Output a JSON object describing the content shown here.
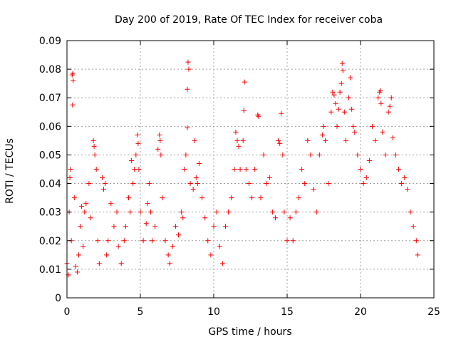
{
  "chart_data": {
    "type": "scatter",
    "title": "Day 200 of 2019, Rate Of TEC Index for receiver coba",
    "xlabel": "GPS time / hours",
    "ylabel": "ROTI / TECUs",
    "xlim": [
      0,
      25
    ],
    "ylim": [
      0,
      0.09
    ],
    "x_ticks": [
      0,
      5,
      10,
      15,
      20,
      25
    ],
    "y_ticks": [
      0,
      0.01,
      0.02,
      0.03,
      0.04,
      0.05,
      0.06,
      0.07,
      0.08,
      0.09
    ],
    "x_tick_labels": [
      "0",
      "5",
      "10",
      "15",
      "20",
      "25"
    ],
    "y_tick_labels": [
      "0",
      "0.01",
      "0.02",
      "0.03",
      "0.04",
      "0.05",
      "0.06",
      "0.07",
      "0.08",
      "0.09"
    ],
    "grid": true,
    "marker": "+",
    "series_color": "#ff0000",
    "series": [
      {
        "name": "ROTI",
        "points": [
          [
            0.0,
            0.012
          ],
          [
            0.1,
            0.008
          ],
          [
            0.15,
            0.03
          ],
          [
            0.2,
            0.042
          ],
          [
            0.25,
            0.045
          ],
          [
            0.3,
            0.02
          ],
          [
            0.35,
            0.078
          ],
          [
            0.4,
            0.0785
          ],
          [
            0.42,
            0.076
          ],
          [
            0.38,
            0.0675
          ],
          [
            0.5,
            0.035
          ],
          [
            0.6,
            0.011
          ],
          [
            0.7,
            0.009
          ],
          [
            0.8,
            0.015
          ],
          [
            0.9,
            0.025
          ],
          [
            1.0,
            0.032
          ],
          [
            1.1,
            0.018
          ],
          [
            1.2,
            0.03
          ],
          [
            1.3,
            0.033
          ],
          [
            1.5,
            0.04
          ],
          [
            1.6,
            0.028
          ],
          [
            1.8,
            0.055
          ],
          [
            1.85,
            0.053
          ],
          [
            1.9,
            0.05
          ],
          [
            2.0,
            0.045
          ],
          [
            2.1,
            0.02
          ],
          [
            2.2,
            0.012
          ],
          [
            2.4,
            0.042
          ],
          [
            2.5,
            0.038
          ],
          [
            2.6,
            0.04
          ],
          [
            2.7,
            0.015
          ],
          [
            2.8,
            0.02
          ],
          [
            3.0,
            0.033
          ],
          [
            3.2,
            0.025
          ],
          [
            3.4,
            0.03
          ],
          [
            3.5,
            0.018
          ],
          [
            3.7,
            0.012
          ],
          [
            3.9,
            0.02
          ],
          [
            4.0,
            0.025
          ],
          [
            4.2,
            0.035
          ],
          [
            4.3,
            0.03
          ],
          [
            4.4,
            0.048
          ],
          [
            4.5,
            0.04
          ],
          [
            4.6,
            0.045
          ],
          [
            4.7,
            0.05
          ],
          [
            4.8,
            0.057
          ],
          [
            4.85,
            0.054
          ],
          [
            4.9,
            0.045
          ],
          [
            5.0,
            0.03
          ],
          [
            5.2,
            0.02
          ],
          [
            5.4,
            0.026
          ],
          [
            5.5,
            0.033
          ],
          [
            5.6,
            0.04
          ],
          [
            5.7,
            0.03
          ],
          [
            5.8,
            0.02
          ],
          [
            6.0,
            0.025
          ],
          [
            6.2,
            0.052
          ],
          [
            6.3,
            0.057
          ],
          [
            6.35,
            0.055
          ],
          [
            6.4,
            0.05
          ],
          [
            6.5,
            0.035
          ],
          [
            6.7,
            0.02
          ],
          [
            6.9,
            0.015
          ],
          [
            7.0,
            0.012
          ],
          [
            7.2,
            0.018
          ],
          [
            7.4,
            0.025
          ],
          [
            7.6,
            0.022
          ],
          [
            7.8,
            0.03
          ],
          [
            7.9,
            0.028
          ],
          [
            8.0,
            0.045
          ],
          [
            8.1,
            0.05
          ],
          [
            8.2,
            0.073
          ],
          [
            8.25,
            0.0825
          ],
          [
            8.3,
            0.08
          ],
          [
            8.2,
            0.0595
          ],
          [
            8.4,
            0.04
          ],
          [
            8.6,
            0.038
          ],
          [
            8.7,
            0.055
          ],
          [
            8.8,
            0.042
          ],
          [
            8.9,
            0.04
          ],
          [
            9.0,
            0.047
          ],
          [
            9.2,
            0.035
          ],
          [
            9.4,
            0.028
          ],
          [
            9.6,
            0.02
          ],
          [
            9.8,
            0.015
          ],
          [
            10.0,
            0.025
          ],
          [
            10.2,
            0.03
          ],
          [
            10.4,
            0.018
          ],
          [
            10.6,
            0.012
          ],
          [
            10.8,
            0.025
          ],
          [
            11.0,
            0.03
          ],
          [
            11.2,
            0.035
          ],
          [
            11.4,
            0.045
          ],
          [
            11.5,
            0.058
          ],
          [
            11.6,
            0.055
          ],
          [
            11.7,
            0.053
          ],
          [
            11.8,
            0.045
          ],
          [
            12.0,
            0.055
          ],
          [
            12.05,
            0.0655
          ],
          [
            12.1,
            0.0755
          ],
          [
            12.2,
            0.045
          ],
          [
            12.4,
            0.04
          ],
          [
            12.6,
            0.035
          ],
          [
            12.8,
            0.045
          ],
          [
            13.0,
            0.064
          ],
          [
            13.05,
            0.0635
          ],
          [
            13.2,
            0.035
          ],
          [
            13.4,
            0.05
          ],
          [
            13.6,
            0.04
          ],
          [
            13.8,
            0.042
          ],
          [
            14.0,
            0.03
          ],
          [
            14.2,
            0.028
          ],
          [
            14.4,
            0.055
          ],
          [
            14.5,
            0.054
          ],
          [
            14.6,
            0.0645
          ],
          [
            14.7,
            0.05
          ],
          [
            14.8,
            0.03
          ],
          [
            15.0,
            0.02
          ],
          [
            15.2,
            0.028
          ],
          [
            15.4,
            0.02
          ],
          [
            15.6,
            0.03
          ],
          [
            15.8,
            0.035
          ],
          [
            16.0,
            0.045
          ],
          [
            16.2,
            0.04
          ],
          [
            16.4,
            0.055
          ],
          [
            16.6,
            0.05
          ],
          [
            16.8,
            0.038
          ],
          [
            17.0,
            0.03
          ],
          [
            17.2,
            0.05
          ],
          [
            17.4,
            0.057
          ],
          [
            17.5,
            0.06
          ],
          [
            17.6,
            0.055
          ],
          [
            17.8,
            0.04
          ],
          [
            18.0,
            0.065
          ],
          [
            18.1,
            0.072
          ],
          [
            18.2,
            0.071
          ],
          [
            18.3,
            0.068
          ],
          [
            18.4,
            0.06
          ],
          [
            18.5,
            0.066
          ],
          [
            18.6,
            0.072
          ],
          [
            18.7,
            0.075
          ],
          [
            18.75,
            0.082
          ],
          [
            18.8,
            0.0795
          ],
          [
            18.9,
            0.065
          ],
          [
            19.0,
            0.055
          ],
          [
            19.2,
            0.07
          ],
          [
            19.3,
            0.077
          ],
          [
            19.4,
            0.066
          ],
          [
            19.5,
            0.06
          ],
          [
            19.6,
            0.058
          ],
          [
            19.8,
            0.05
          ],
          [
            20.0,
            0.045
          ],
          [
            20.2,
            0.04
          ],
          [
            20.4,
            0.042
          ],
          [
            20.6,
            0.048
          ],
          [
            20.8,
            0.06
          ],
          [
            21.0,
            0.055
          ],
          [
            21.2,
            0.07
          ],
          [
            21.3,
            0.072
          ],
          [
            21.35,
            0.0725
          ],
          [
            21.4,
            0.068
          ],
          [
            21.5,
            0.058
          ],
          [
            21.7,
            0.05
          ],
          [
            21.9,
            0.065
          ],
          [
            22.0,
            0.067
          ],
          [
            22.1,
            0.07
          ],
          [
            22.2,
            0.056
          ],
          [
            22.4,
            0.05
          ],
          [
            22.6,
            0.045
          ],
          [
            22.8,
            0.04
          ],
          [
            23.0,
            0.042
          ],
          [
            23.2,
            0.038
          ],
          [
            23.4,
            0.03
          ],
          [
            23.6,
            0.025
          ],
          [
            23.8,
            0.02
          ],
          [
            23.9,
            0.015
          ]
        ]
      }
    ]
  }
}
